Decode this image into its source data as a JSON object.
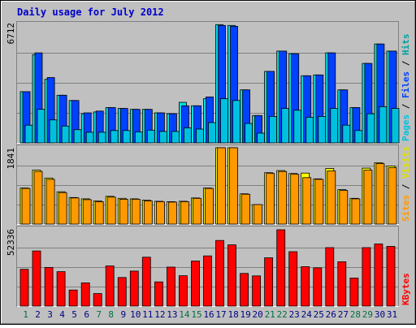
{
  "colors": {
    "background": "#c0c0c0",
    "title": "#0000cc",
    "hits": "#00e0e0",
    "files": "#0040ff",
    "pages": "#00c0e0",
    "visits": "#ffff00",
    "sites": "#ff9900",
    "kbytes": "#ff0000",
    "weekend_day": "#007040",
    "weekday": "#000080"
  },
  "chart_data": {
    "type": "bar",
    "title": "Daily usage for July 2012",
    "days": [
      "1",
      "2",
      "3",
      "4",
      "5",
      "6",
      "7",
      "8",
      "9",
      "10",
      "11",
      "12",
      "13",
      "14",
      "15",
      "16",
      "17",
      "18",
      "19",
      "20",
      "21",
      "22",
      "23",
      "24",
      "25",
      "26",
      "27",
      "28",
      "29",
      "30",
      "31"
    ],
    "weekend_days": [
      "1",
      "7",
      "8",
      "14",
      "15",
      "21",
      "22",
      "28",
      "29"
    ],
    "panels": [
      {
        "name": "hits-files-pages",
        "ymax_label": "6712",
        "ymax": 6712,
        "legend": [
          "Pages",
          "Files",
          "Hits"
        ],
        "series": [
          {
            "name": "Hits",
            "values": [
              2900,
              5000,
              3600,
              2700,
              2400,
              1650,
              1750,
              2000,
              1950,
              1900,
              1900,
              1700,
              1650,
              2300,
              2100,
              2500,
              6700,
              6650,
              3000,
              1550,
              4050,
              5200,
              5050,
              3800,
              3850,
              5100,
              3000,
              2000,
              4500,
              5600,
              5200
            ]
          },
          {
            "name": "Files",
            "values": [
              2900,
              5100,
              3700,
              2700,
              2400,
              1700,
              1800,
              2000,
              1950,
              1900,
              1900,
              1700,
              1650,
              2100,
              2100,
              2600,
              6650,
              6600,
              3000,
              1550,
              4050,
              5200,
              5050,
              3800,
              3850,
              5100,
              3000,
              2000,
              4500,
              5600,
              5200
            ]
          },
          {
            "name": "Pages",
            "values": [
              1000,
              1900,
              1300,
              950,
              750,
              600,
              600,
              700,
              700,
              620,
              720,
              650,
              650,
              850,
              780,
              1150,
              2500,
              2400,
              1100,
              550,
              1500,
              1950,
              1850,
              1450,
              1500,
              1950,
              1000,
              700,
              1650,
              2050,
              1950
            ]
          }
        ]
      },
      {
        "name": "visits-sites",
        "ymax_label": "1841",
        "ymax": 1841,
        "legend": [
          "Sites",
          "Visits"
        ],
        "series": [
          {
            "name": "Visits",
            "values": [
              870,
              1300,
              1110,
              780,
              640,
              610,
              560,
              670,
              620,
              610,
              580,
              550,
              540,
              550,
              630,
              870,
              1841,
              1841,
              730,
              470,
              1240,
              1290,
              1220,
              1230,
              1090,
              1340,
              830,
              620,
              1350,
              1480,
              1400
            ]
          },
          {
            "name": "Sites",
            "values": [
              860,
              1270,
              1080,
              760,
              630,
              590,
              540,
              650,
              600,
              600,
              560,
              540,
              530,
              540,
              620,
              860,
              1841,
              1841,
              720,
              470,
              1220,
              1270,
              1200,
              1120,
              1080,
              1280,
              810,
              610,
              1300,
              1460,
              1360
            ]
          }
        ]
      },
      {
        "name": "kbytes",
        "ymax_label": "52336",
        "ymax": 52336,
        "legend": [
          "KBytes"
        ],
        "series": [
          {
            "name": "KBytes",
            "values": [
              25200,
              37800,
              26500,
              23600,
              11000,
              15900,
              8600,
              27500,
              19600,
              24000,
              33500,
              16600,
              26700,
              20800,
              30900,
              34400,
              45000,
              42000,
              22400,
              20700,
              33100,
              52336,
              37300,
              27000,
              26200,
              40100,
              30400,
              19200,
              40100,
              42600,
              40900
            ]
          }
        ]
      }
    ]
  }
}
